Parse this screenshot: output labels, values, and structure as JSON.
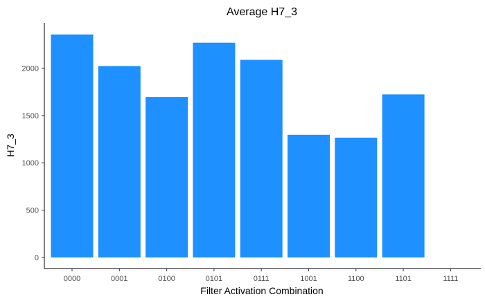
{
  "chart_data": {
    "type": "bar",
    "title": "Average H7_3",
    "xlabel": "Filter Activation Combination",
    "ylabel": "H7_3",
    "categories": [
      "0000",
      "0001",
      "0100",
      "0101",
      "0111",
      "1001",
      "1100",
      "1101",
      "1111"
    ],
    "values": [
      2355,
      2022,
      1695,
      2268,
      2087,
      1295,
      1265,
      1722,
      null
    ],
    "ylim": [
      0,
      2400
    ],
    "yticks": [
      0,
      500,
      1000,
      1500,
      2000
    ],
    "grid": false,
    "bar_color": "#1E90FF"
  }
}
